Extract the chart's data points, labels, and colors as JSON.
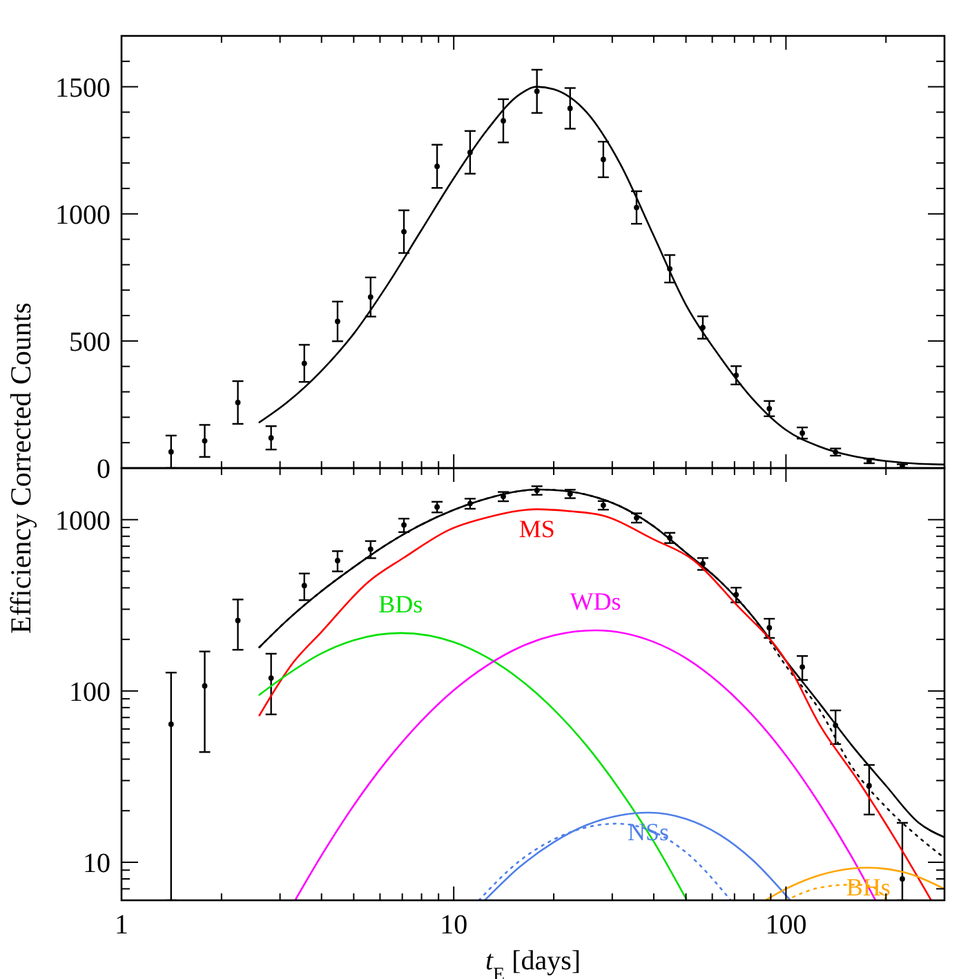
{
  "chart_data": [
    {
      "type": "scatter",
      "ylabel": "Efficiency Corrected Counts",
      "log": "x",
      "xlim": [
        1,
        300
      ],
      "ylim": [
        0,
        1700
      ],
      "tick_labels": "y",
      "grid": false,
      "legend": false,
      "xticks": [
        1,
        {
          "value": 2,
          "label": null
        },
        {
          "value": 3,
          "label": null
        },
        {
          "value": 4,
          "label": null
        },
        {
          "value": 5,
          "label": null
        },
        {
          "value": 6,
          "label": null
        },
        {
          "value": 7,
          "label": null
        },
        {
          "value": 8,
          "label": null
        },
        {
          "value": 9,
          "label": null
        },
        10,
        {
          "value": 20,
          "label": null
        },
        {
          "value": 30,
          "label": null
        },
        {
          "value": 40,
          "label": null
        },
        {
          "value": 50,
          "label": null
        },
        {
          "value": 60,
          "label": null
        },
        {
          "value": 70,
          "label": null
        },
        {
          "value": 80,
          "label": null
        },
        {
          "value": 90,
          "label": null
        },
        100,
        {
          "value": 200,
          "label": null
        }
      ],
      "yticks": [
        0,
        {
          "value": 100,
          "label": null
        },
        {
          "value": 200,
          "label": null
        },
        {
          "value": 300,
          "label": null
        },
        {
          "value": 400,
          "label": null
        },
        500,
        {
          "value": 600,
          "label": null
        },
        {
          "value": 700,
          "label": null
        },
        {
          "value": 800,
          "label": null
        },
        {
          "value": 900,
          "label": null
        },
        1000,
        {
          "value": 1100,
          "label": null
        },
        {
          "value": 1200,
          "label": null
        },
        {
          "value": 1300,
          "label": null
        },
        {
          "value": 1400,
          "label": null
        },
        1500,
        {
          "value": 1600,
          "label": null
        }
      ],
      "series": [
        {
          "marker": "circle",
          "color": "#000000",
          "x": [
            1.41,
            1.78,
            2.24,
            2.82,
            3.55,
            4.47,
            5.62,
            7.08,
            8.91,
            11.2,
            14.1,
            17.8,
            22.4,
            28.2,
            35.5,
            44.7,
            56.2,
            70.8,
            89.1,
            112,
            141,
            178,
            224
          ],
          "values": [
            64,
            107,
            258,
            119,
            412,
            577,
            673,
            930,
            1187,
            1242,
            1366,
            1482,
            1415,
            1214,
            1025,
            784,
            553,
            365,
            234,
            138,
            63,
            28,
            8
          ],
          "errors": [
            64,
            63,
            84,
            46,
            73,
            78,
            77,
            84,
            85,
            84,
            85,
            85,
            80,
            70,
            64,
            54,
            44,
            36,
            30,
            22,
            14,
            9,
            7
          ]
        },
        {
          "type": "line",
          "line_style": "solid",
          "color": "#000000",
          "x": [
            2.6,
            3.16,
            3.98,
            5.01,
            6.31,
            7.94,
            10,
            12.6,
            15.8,
            17.8,
            20,
            25.1,
            31.6,
            39.8,
            50.1,
            63.1,
            79.4,
            100,
            126,
            158,
            200,
            251,
            300
          ],
          "values": [
            180,
            260,
            380,
            530,
            720,
            930,
            1140,
            1330,
            1470,
            1500,
            1490,
            1400,
            1200,
            920,
            640,
            440,
            272,
            150,
            85,
            48,
            28,
            17,
            14
          ]
        }
      ]
    },
    {
      "type": "line",
      "xlabel": "t$_{E}$ [days]",
      "log": "xy",
      "xlim": [
        1,
        300
      ],
      "ylim": [
        6,
        2000
      ],
      "grid": false,
      "legend": false,
      "xticks": [
        1,
        {
          "value": 2,
          "label": null
        },
        {
          "value": 3,
          "label": null
        },
        {
          "value": 4,
          "label": null
        },
        {
          "value": 5,
          "label": null
        },
        {
          "value": 6,
          "label": null
        },
        {
          "value": 7,
          "label": null
        },
        {
          "value": 8,
          "label": null
        },
        {
          "value": 9,
          "label": null
        },
        10,
        {
          "value": 20,
          "label": null
        },
        {
          "value": 30,
          "label": null
        },
        {
          "value": 40,
          "label": null
        },
        {
          "value": 50,
          "label": null
        },
        {
          "value": 60,
          "label": null
        },
        {
          "value": 70,
          "label": null
        },
        {
          "value": 80,
          "label": null
        },
        {
          "value": 90,
          "label": null
        },
        100,
        {
          "value": 200,
          "label": null
        }
      ],
      "yticks": [
        {
          "value": 6,
          "label": null
        },
        {
          "value": 7,
          "label": null
        },
        {
          "value": 8,
          "label": null
        },
        {
          "value": 9,
          "label": null
        },
        10,
        {
          "value": 20,
          "label": null
        },
        {
          "value": 30,
          "label": null
        },
        {
          "value": 40,
          "label": null
        },
        {
          "value": 50,
          "label": null
        },
        {
          "value": 60,
          "label": null
        },
        {
          "value": 70,
          "label": null
        },
        {
          "value": 80,
          "label": null
        },
        {
          "value": 90,
          "label": null
        },
        100,
        {
          "value": 200,
          "label": null
        },
        {
          "value": 300,
          "label": null
        },
        {
          "value": 400,
          "label": null
        },
        {
          "value": 500,
          "label": null
        },
        {
          "value": 600,
          "label": null
        },
        {
          "value": 700,
          "label": null
        },
        {
          "value": 800,
          "label": null
        },
        {
          "value": 900,
          "label": null
        },
        1000
      ],
      "series": [
        {
          "type": "scatter",
          "marker": "circle",
          "color": "#000000",
          "x": [
            1.41,
            1.78,
            2.24,
            2.82,
            3.55,
            4.47,
            5.62,
            7.08,
            8.91,
            11.2,
            14.1,
            17.8,
            22.4,
            28.2,
            35.5,
            44.7,
            56.2,
            70.8,
            89.1,
            112,
            141,
            178,
            224
          ],
          "values": [
            64,
            107,
            258,
            119,
            412,
            577,
            673,
            930,
            1187,
            1242,
            1366,
            1482,
            1415,
            1214,
            1025,
            784,
            553,
            365,
            234,
            138,
            63,
            28,
            8
          ],
          "errors": [
            [
              6,
              128
            ],
            63,
            84,
            46,
            73,
            78,
            77,
            84,
            85,
            84,
            85,
            85,
            80,
            70,
            64,
            54,
            44,
            36,
            30,
            22,
            14,
            9,
            [
              6,
              17
            ]
          ]
        },
        {
          "line_style": "solid",
          "color": "#000000",
          "x": [
            2.6,
            3.16,
            3.98,
            5.01,
            6.31,
            7.94,
            10,
            12.6,
            15.8,
            17.8,
            20,
            25.1,
            31.6,
            39.8,
            50.1,
            63.1,
            79.4,
            100,
            126,
            158,
            200,
            251,
            300
          ],
          "values": [
            180,
            260,
            380,
            530,
            720,
            930,
            1140,
            1330,
            1470,
            1500,
            1490,
            1400,
            1200,
            920,
            640,
            440,
            272,
            150,
            85,
            48,
            28,
            17,
            14
          ]
        },
        {
          "line_style": "dotted",
          "color": "#000000",
          "x": [
            2.6,
            3.16,
            3.98,
            5.01,
            6.31,
            7.94,
            10,
            12.6,
            15.8,
            17.8,
            20,
            25.1,
            31.6,
            39.8,
            50.1,
            63.1,
            79.4,
            100,
            126,
            158,
            200,
            251,
            300
          ],
          "values": [
            180,
            260,
            380,
            530,
            720,
            930,
            1140,
            1330,
            1470,
            1500,
            1490,
            1400,
            1200,
            920,
            640,
            440,
            272,
            140,
            78,
            36,
            21,
            14,
            10.6
          ]
        },
        {
          "line_style": "solid",
          "name": "MS",
          "color": "#ff0000",
          "x": [
            2.6,
            3.3,
            3.98,
            5.53,
            7.08,
            9.77,
            12.6,
            17.8,
            22.4,
            28.1,
            39.8,
            52.7,
            70.8,
            100,
            126,
            166,
            214,
            273
          ],
          "values": [
            72,
            148,
            219,
            433,
            600,
            879,
            1030,
            1150,
            1120,
            1057,
            770,
            580,
            320,
            150,
            64,
            29.4,
            13.5,
            6.05
          ]
        },
        {
          "line_style": "solid",
          "name": "BDs",
          "color": "#00e000",
          "x": [
            2.6,
            3.16,
            3.98,
            5.01,
            6.92,
            10,
            12.6,
            15.8,
            20,
            25.1,
            31.6,
            39.8,
            50.1
          ],
          "values": [
            95,
            125,
            165,
            198,
            218,
            193,
            157,
            117,
            78,
            48,
            26.5,
            13.4,
            6.1
          ]
        },
        {
          "line_style": "solid",
          "name": "WDs",
          "color": "#ff00ff",
          "x": [
            3.33,
            3.98,
            5.01,
            6.31,
            7.94,
            10,
            12.6,
            15.8,
            20,
            26.7,
            39.8,
            50.1,
            63.1,
            79.4,
            100,
            126,
            158,
            186
          ],
          "values": [
            6,
            10.8,
            21.6,
            39.5,
            66,
            101,
            141,
            180,
            211,
            226,
            194,
            155,
            111,
            72,
            42,
            22,
            10.7,
            6
          ]
        },
        {
          "line_style": "solid",
          "name": "NSs",
          "color": "#5080e8",
          "x": [
            12.4,
            15.8,
            20,
            25.1,
            31.6,
            38.5,
            50.1,
            63.1,
            79.4,
            103
          ],
          "values": [
            6,
            9.4,
            13.1,
            16.5,
            18.8,
            19.5,
            17.9,
            14.5,
            10.3,
            6
          ]
        },
        {
          "line_style": "dotted",
          "color": "#5080e8",
          "x": [
            11.9,
            15.8,
            20,
            25.1,
            30.9,
            39.8,
            50.1,
            68.2
          ],
          "values": [
            6,
            10.2,
            13.6,
            16,
            16.8,
            15.1,
            11.4,
            6
          ]
        },
        {
          "line_style": "solid",
          "name": "BHs",
          "color": "#ffa500",
          "x": [
            86.7,
            100,
            126,
            158,
            177,
            224,
            300
          ],
          "values": [
            6,
            7,
            8.4,
            9.2,
            9.3,
            8.8,
            7
          ]
        },
        {
          "line_style": "dotted",
          "color": "#ffa500",
          "x": [
            100,
            126,
            157,
            178,
            201
          ],
          "values": [
            6,
            7.1,
            7.4,
            7.3,
            6
          ]
        }
      ]
    }
  ]
}
